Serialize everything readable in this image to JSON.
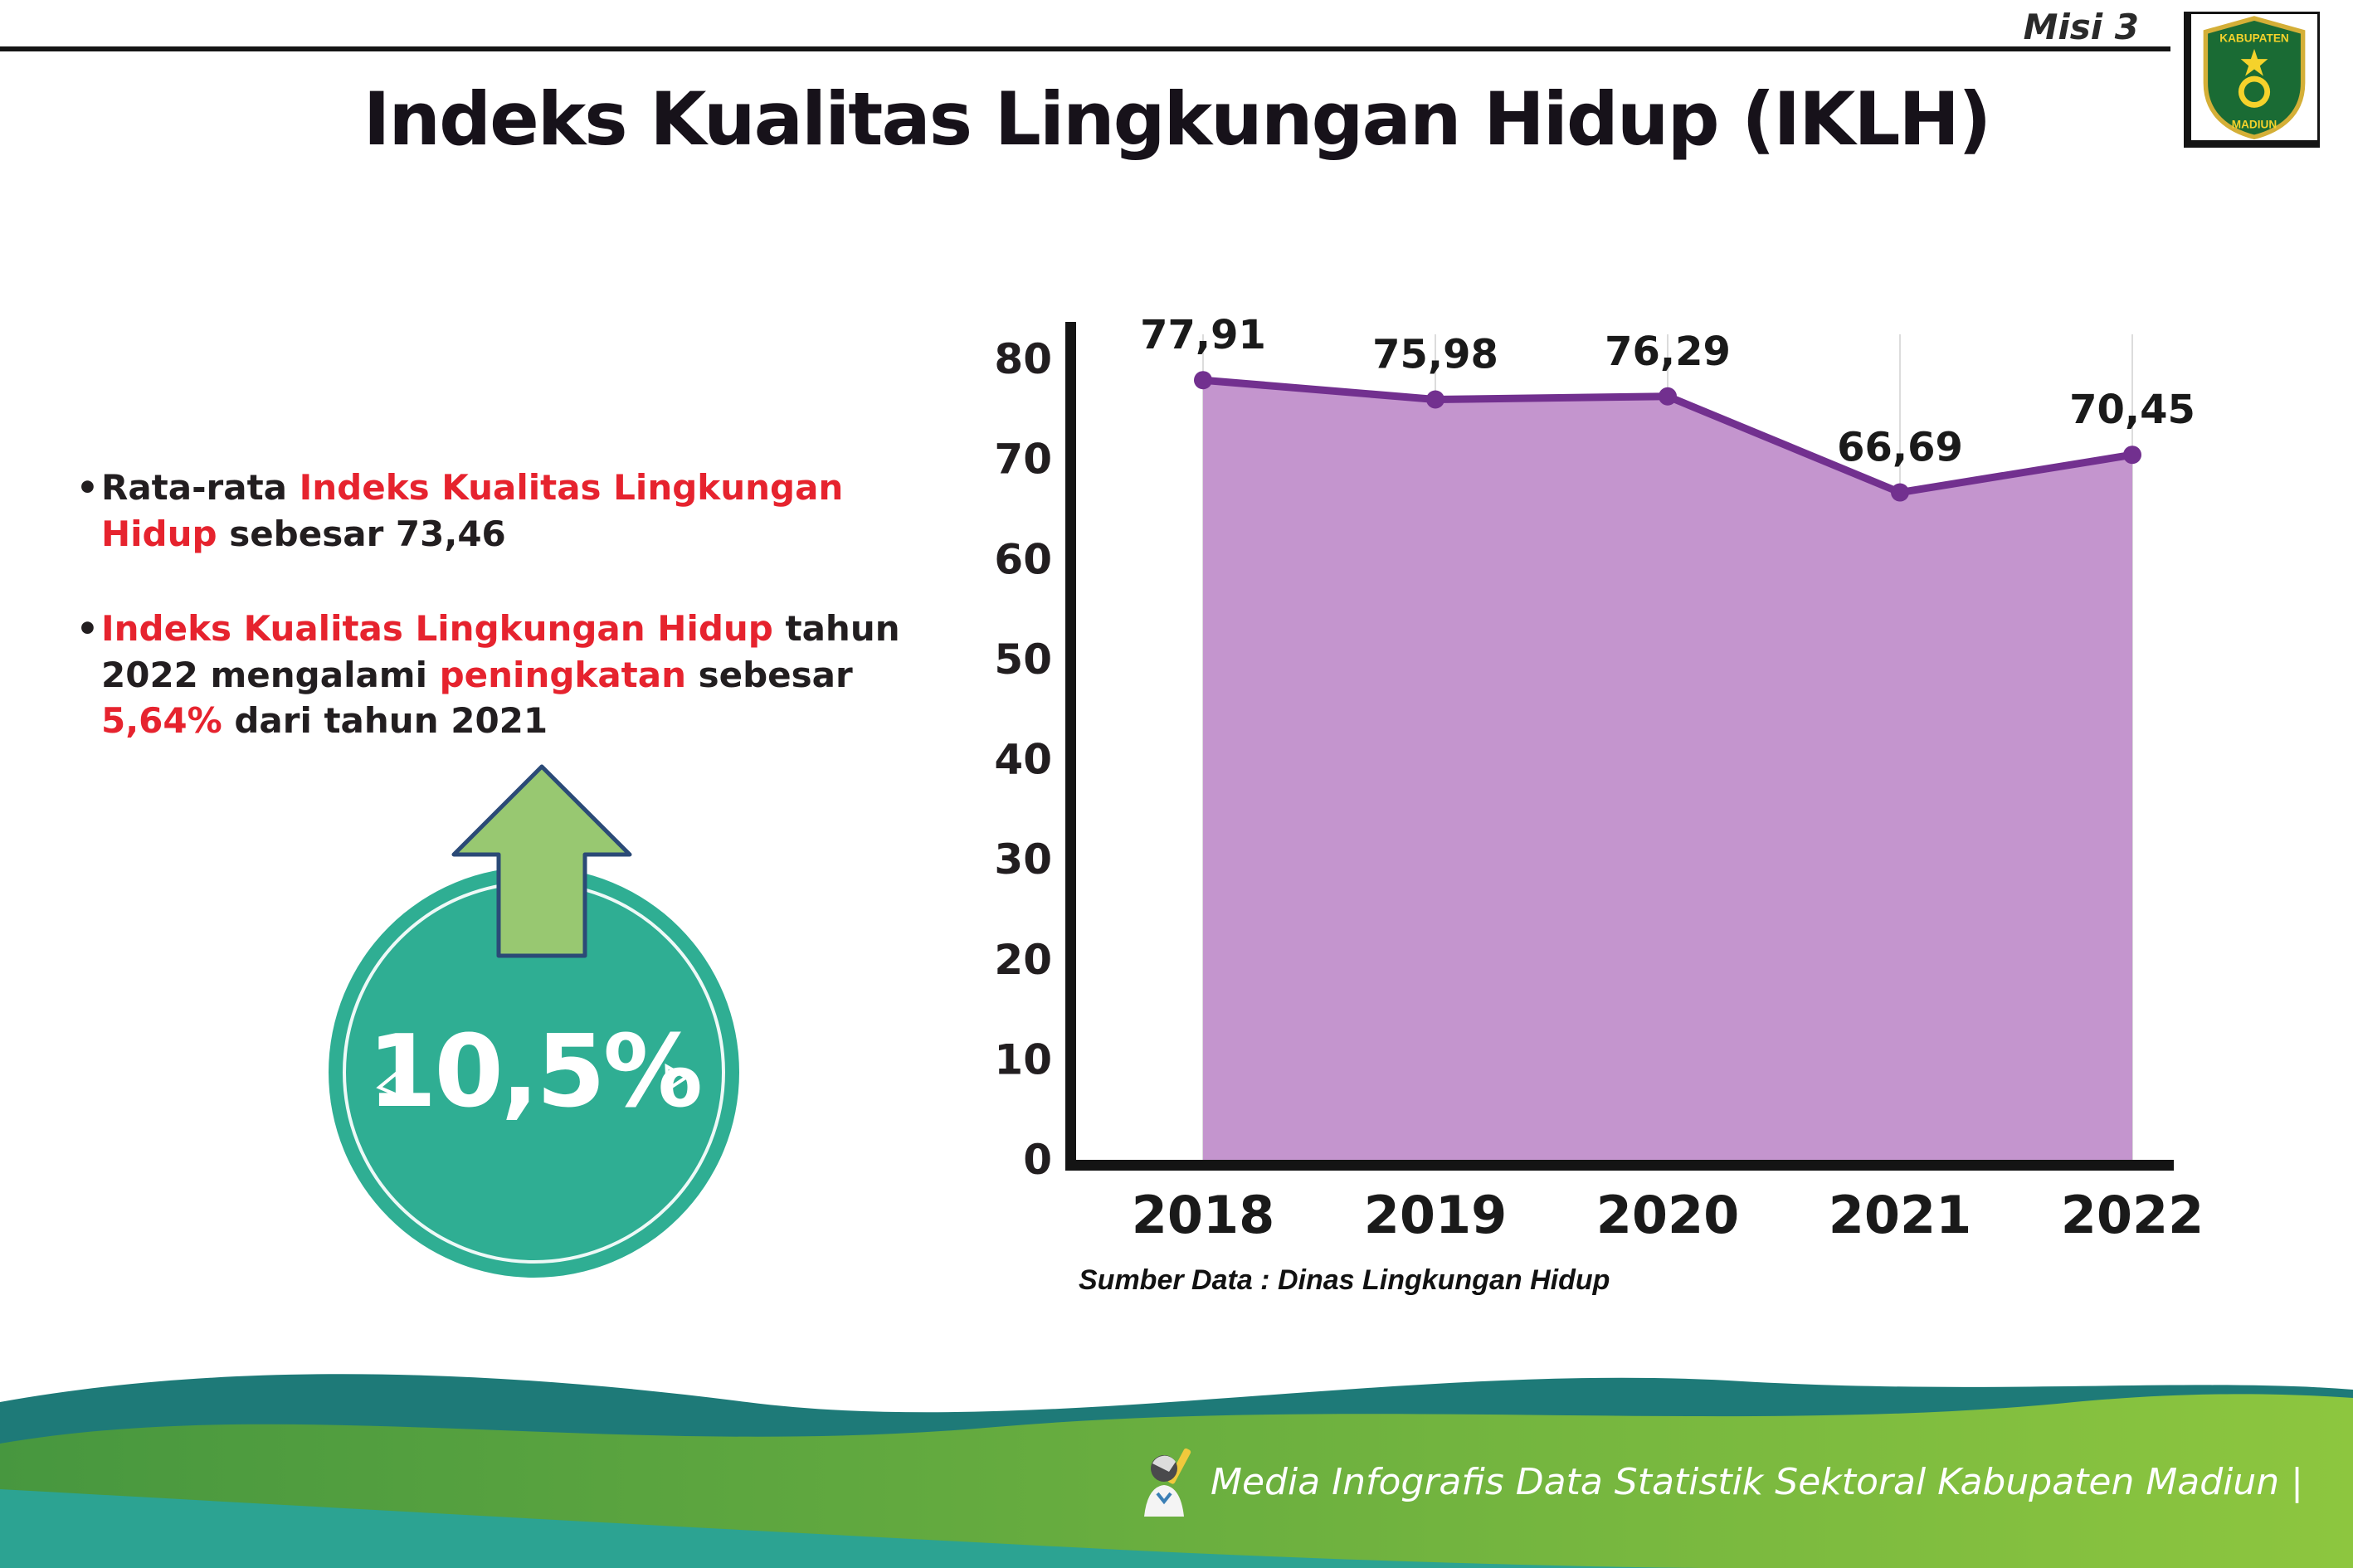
{
  "colors": {
    "ink": "#221e20",
    "red": "#e6232e",
    "purple_line": "#72308f",
    "purple_fill": "#c495ce",
    "teal_badge": "#2fae93",
    "arrow_green": "#98c871",
    "arrow_outline": "#2b4a77",
    "axis": "#141414",
    "grid": "#dcdcdc",
    "label": "#1a1a1a",
    "footer_teal_dark": "#1e7a78",
    "footer_green": "#47973f",
    "footer_green_light": "#8dc63f",
    "footer_teal": "#2ca392"
  },
  "header": {
    "misi_label": "Misi 3",
    "logo_top": "KABUPATEN",
    "logo_bottom": "MADIUN"
  },
  "title": "Indeks Kualitas Lingkungan Hidup (IKLH)",
  "bullets": [
    {
      "marker": "•",
      "segments": [
        {
          "t": "Rata-rata ",
          "c": "ink"
        },
        {
          "t": "Indeks Kualitas Lingkungan Hidup",
          "c": "red"
        },
        {
          "t": " sebesar 73,46",
          "c": "ink"
        }
      ]
    },
    {
      "marker": "•",
      "segments": [
        {
          "t": "Indeks Kualitas Lingkungan Hidup",
          "c": "red"
        },
        {
          "t": " tahun 2022 mengalami ",
          "c": "ink"
        },
        {
          "t": "peningkatan",
          "c": "red"
        },
        {
          "t": " sebesar ",
          "c": "ink"
        },
        {
          "t": "5,64%",
          "c": "red"
        },
        {
          "t": " dari tahun 2021",
          "c": "ink"
        }
      ]
    }
  ],
  "badge": {
    "value": "10,5%",
    "icon": "up-arrow-icon"
  },
  "chart_data": {
    "type": "area",
    "title": "",
    "categories": [
      "2018",
      "2019",
      "2020",
      "2021",
      "2022"
    ],
    "values": [
      77.91,
      75.98,
      76.29,
      66.69,
      70.45
    ],
    "value_labels": [
      "77,91",
      "75,98",
      "76,29",
      "66,69",
      "70,45"
    ],
    "ylim": [
      0,
      80
    ],
    "ytick_step": 10,
    "xlabel": "",
    "ylabel": "",
    "grid": "vertical-light",
    "legend": "none",
    "source": "Sumber Data : Dinas Lingkungan Hidup"
  },
  "footer": {
    "text": "Media Infografis Data Statistik Sektoral Kabupaten Madiun |",
    "mascot": "writer-mascot-icon"
  }
}
